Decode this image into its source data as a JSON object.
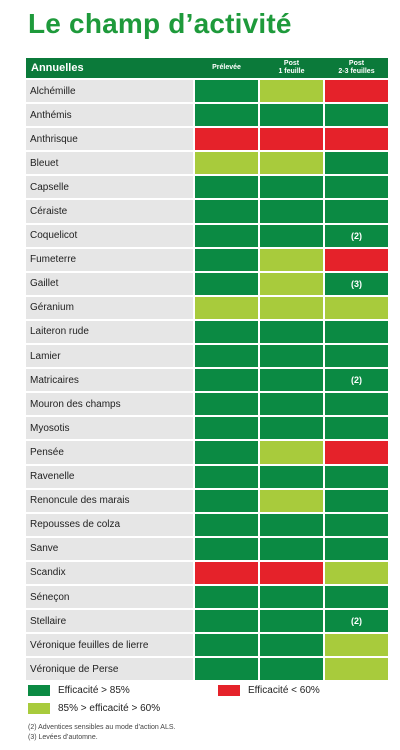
{
  "title": "Le champ d’activité",
  "colors": {
    "green": "#0b8a43",
    "light_green": "#a8cb3c",
    "red": "#e5222a",
    "header": "#0b7a3a",
    "title": "#1e9a3b"
  },
  "table": {
    "header": {
      "first": "Annuelles",
      "columns": [
        {
          "line1": "Prélevée",
          "line2": ""
        },
        {
          "line1": "Post",
          "line2": "1 feuille"
        },
        {
          "line1": "Post",
          "line2": "2-3 feuilles"
        }
      ]
    },
    "rows": [
      {
        "name": "Alchémille",
        "cells": [
          {
            "c": "g",
            "t": ""
          },
          {
            "c": "l",
            "t": ""
          },
          {
            "c": "r",
            "t": ""
          }
        ]
      },
      {
        "name": "Anthémis",
        "cells": [
          {
            "c": "g",
            "t": ""
          },
          {
            "c": "g",
            "t": ""
          },
          {
            "c": "g",
            "t": ""
          }
        ]
      },
      {
        "name": "Anthrisque",
        "cells": [
          {
            "c": "r",
            "t": ""
          },
          {
            "c": "r",
            "t": ""
          },
          {
            "c": "r",
            "t": ""
          }
        ]
      },
      {
        "name": "Bleuet",
        "cells": [
          {
            "c": "l",
            "t": ""
          },
          {
            "c": "l",
            "t": ""
          },
          {
            "c": "g",
            "t": ""
          }
        ]
      },
      {
        "name": "Capselle",
        "cells": [
          {
            "c": "g",
            "t": ""
          },
          {
            "c": "g",
            "t": ""
          },
          {
            "c": "g",
            "t": ""
          }
        ]
      },
      {
        "name": "Céraiste",
        "cells": [
          {
            "c": "g",
            "t": ""
          },
          {
            "c": "g",
            "t": ""
          },
          {
            "c": "g",
            "t": ""
          }
        ]
      },
      {
        "name": "Coquelicot",
        "cells": [
          {
            "c": "g",
            "t": ""
          },
          {
            "c": "g",
            "t": ""
          },
          {
            "c": "g",
            "t": "(2)"
          }
        ]
      },
      {
        "name": "Fumeterre",
        "cells": [
          {
            "c": "g",
            "t": ""
          },
          {
            "c": "l",
            "t": ""
          },
          {
            "c": "r",
            "t": ""
          }
        ]
      },
      {
        "name": "Gaillet",
        "cells": [
          {
            "c": "g",
            "t": ""
          },
          {
            "c": "l",
            "t": ""
          },
          {
            "c": "g",
            "t": "(3)"
          }
        ]
      },
      {
        "name": "Géranium",
        "cells": [
          {
            "c": "l",
            "t": ""
          },
          {
            "c": "l",
            "t": ""
          },
          {
            "c": "l",
            "t": ""
          }
        ]
      },
      {
        "name": "Laiteron rude",
        "cells": [
          {
            "c": "g",
            "t": ""
          },
          {
            "c": "g",
            "t": ""
          },
          {
            "c": "g",
            "t": ""
          }
        ]
      },
      {
        "name": "Lamier",
        "cells": [
          {
            "c": "g",
            "t": ""
          },
          {
            "c": "g",
            "t": ""
          },
          {
            "c": "g",
            "t": ""
          }
        ]
      },
      {
        "name": "Matricaires",
        "cells": [
          {
            "c": "g",
            "t": ""
          },
          {
            "c": "g",
            "t": ""
          },
          {
            "c": "g",
            "t": "(2)"
          }
        ]
      },
      {
        "name": "Mouron des champs",
        "cells": [
          {
            "c": "g",
            "t": ""
          },
          {
            "c": "g",
            "t": ""
          },
          {
            "c": "g",
            "t": ""
          }
        ]
      },
      {
        "name": "Myosotis",
        "cells": [
          {
            "c": "g",
            "t": ""
          },
          {
            "c": "g",
            "t": ""
          },
          {
            "c": "g",
            "t": ""
          }
        ]
      },
      {
        "name": "Pensée",
        "cells": [
          {
            "c": "g",
            "t": ""
          },
          {
            "c": "l",
            "t": ""
          },
          {
            "c": "r",
            "t": ""
          }
        ]
      },
      {
        "name": "Ravenelle",
        "cells": [
          {
            "c": "g",
            "t": ""
          },
          {
            "c": "g",
            "t": ""
          },
          {
            "c": "g",
            "t": ""
          }
        ]
      },
      {
        "name": "Renoncule des marais",
        "cells": [
          {
            "c": "g",
            "t": ""
          },
          {
            "c": "l",
            "t": ""
          },
          {
            "c": "g",
            "t": ""
          }
        ]
      },
      {
        "name": "Repousses de colza",
        "cells": [
          {
            "c": "g",
            "t": ""
          },
          {
            "c": "g",
            "t": ""
          },
          {
            "c": "g",
            "t": ""
          }
        ]
      },
      {
        "name": "Sanve",
        "cells": [
          {
            "c": "g",
            "t": ""
          },
          {
            "c": "g",
            "t": ""
          },
          {
            "c": "g",
            "t": ""
          }
        ]
      },
      {
        "name": "Scandix",
        "cells": [
          {
            "c": "r",
            "t": ""
          },
          {
            "c": "r",
            "t": ""
          },
          {
            "c": "l",
            "t": ""
          }
        ]
      },
      {
        "name": "Séneçon",
        "cells": [
          {
            "c": "g",
            "t": ""
          },
          {
            "c": "g",
            "t": ""
          },
          {
            "c": "g",
            "t": ""
          }
        ]
      },
      {
        "name": "Stellaire",
        "cells": [
          {
            "c": "g",
            "t": ""
          },
          {
            "c": "g",
            "t": ""
          },
          {
            "c": "g",
            "t": "(2)"
          }
        ]
      },
      {
        "name": "Véronique feuilles de lierre",
        "cells": [
          {
            "c": "g",
            "t": ""
          },
          {
            "c": "g",
            "t": ""
          },
          {
            "c": "l",
            "t": ""
          }
        ]
      },
      {
        "name": "Véronique de Perse",
        "cells": [
          {
            "c": "g",
            "t": ""
          },
          {
            "c": "g",
            "t": ""
          },
          {
            "c": "l",
            "t": ""
          }
        ]
      }
    ]
  },
  "legend": {
    "green": "Efficacité > 85%",
    "red": "Efficacité < 60%",
    "light_green": "85% > efficacité > 60%"
  },
  "notes": [
    "(2) Adventices sensibles au mode d’action ALS.",
    "(3) Levées d’automne."
  ]
}
